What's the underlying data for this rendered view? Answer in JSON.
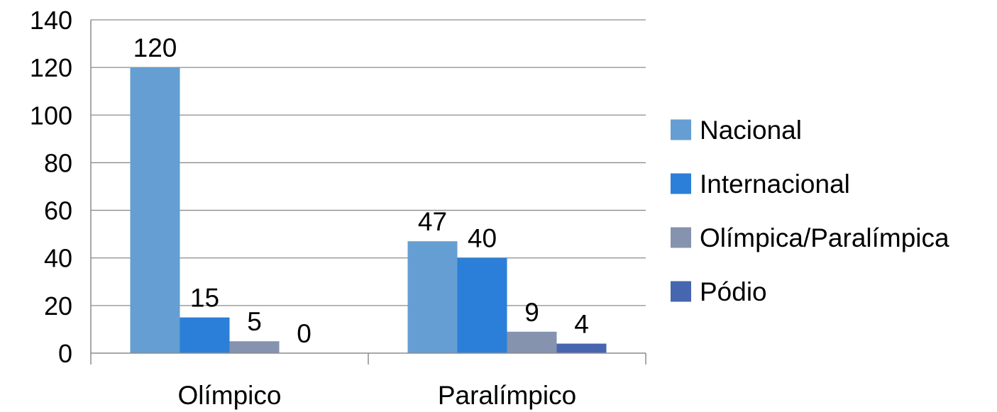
{
  "chart_data": {
    "type": "bar",
    "categories": [
      "Olímpico",
      "Paralímpico"
    ],
    "series": [
      {
        "name": "Nacional",
        "values": [
          120,
          47
        ],
        "color": "#659ED2"
      },
      {
        "name": "Internacional",
        "values": [
          15,
          40
        ],
        "color": "#2B7FD8"
      },
      {
        "name": "Olímpica/Paralímpica",
        "values": [
          5,
          9
        ],
        "color": "#8593AF"
      },
      {
        "name": "Pódio",
        "values": [
          0,
          4
        ],
        "color": "#4766B0"
      }
    ],
    "ylim": [
      0,
      140
    ],
    "yticks": [
      "0",
      "20",
      "40",
      "60",
      "80",
      "100",
      "120",
      "140"
    ],
    "data_labels": [
      [
        "120",
        "47"
      ],
      [
        "15",
        "40"
      ],
      [
        "5",
        "9"
      ],
      [
        "0",
        "4"
      ]
    ],
    "grid": true,
    "legend_position": "right",
    "title": "",
    "xlabel": "",
    "ylabel": ""
  }
}
